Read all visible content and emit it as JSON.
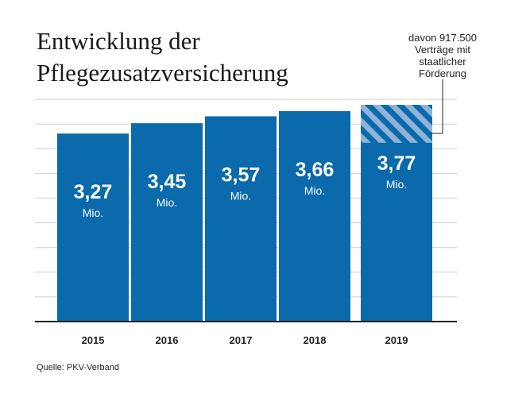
{
  "chart_data": {
    "type": "bar",
    "title": "Entwicklung der Pflegezusatzversicherung",
    "title_lines": [
      "Entwicklung der",
      "Pflegezusatzversicherung"
    ],
    "categories": [
      "2015",
      "2016",
      "2017",
      "2018",
      "2019"
    ],
    "values": [
      3.27,
      3.45,
      3.57,
      3.66,
      3.77
    ],
    "value_labels": [
      "3,27",
      "3,45",
      "3,57",
      "3,66",
      "3,77"
    ],
    "unit_label": "Mio.",
    "highlight": {
      "category": "2019",
      "value": 0.9175,
      "pattern": "hatched",
      "annotation_lines": [
        "davon 917.500",
        "Verträge mit",
        "staatlicher",
        "Förderung"
      ]
    },
    "source": "Quelle: PKV-Verband",
    "grid": true,
    "colors": {
      "bar": "#0a6aab",
      "hatch": "#8fb3d9",
      "grid": "#cfcfcf",
      "axis": "#222222"
    }
  }
}
